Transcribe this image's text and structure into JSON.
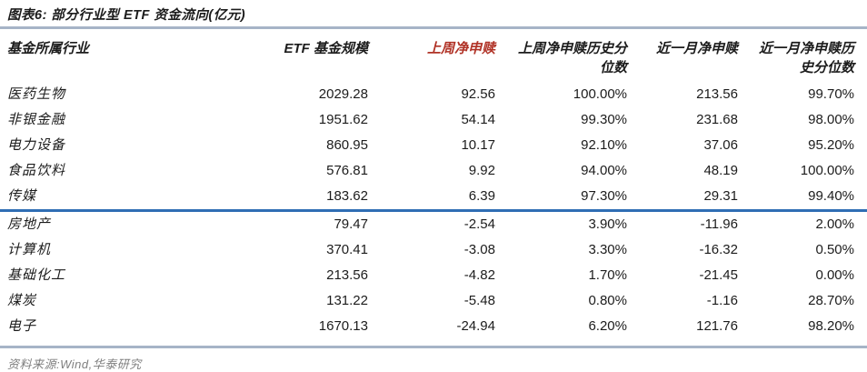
{
  "title": "图表6:  部分行业型 ETF 资金流向(亿元)",
  "colors": {
    "accent_red": "#b03226",
    "divider_blue": "#2f6eb4",
    "rule_blue_gray": "#a6b4c7",
    "footer_gray": "#7f7f7f"
  },
  "table": {
    "columns": [
      {
        "key": "industry",
        "label": "基金所属行业",
        "align": "left",
        "highlight": false
      },
      {
        "key": "scale",
        "label": "ETF 基金规模",
        "align": "right",
        "highlight": false
      },
      {
        "key": "week_net",
        "label": "上周净申赎",
        "align": "right",
        "highlight": true
      },
      {
        "key": "week_pct",
        "label": "上周净申赎历史分位数",
        "label_lines": [
          "上周净申赎历史分",
          "位数"
        ],
        "align": "right",
        "highlight": false
      },
      {
        "key": "month_net",
        "label": "近一月净申赎",
        "align": "right",
        "highlight": false
      },
      {
        "key": "month_pct",
        "label": "近一月净申赎历史分位数",
        "label_lines": [
          "近一月净申赎历",
          "史分位数"
        ],
        "align": "right",
        "highlight": false
      }
    ],
    "rows_top": [
      {
        "industry": "医药生物",
        "scale": "2029.28",
        "week_net": "92.56",
        "week_pct": "100.00%",
        "month_net": "213.56",
        "month_pct": "99.70%"
      },
      {
        "industry": "非银金融",
        "scale": "1951.62",
        "week_net": "54.14",
        "week_pct": "99.30%",
        "month_net": "231.68",
        "month_pct": "98.00%"
      },
      {
        "industry": "电力设备",
        "scale": "860.95",
        "week_net": "10.17",
        "week_pct": "92.10%",
        "month_net": "37.06",
        "month_pct": "95.20%"
      },
      {
        "industry": "食品饮料",
        "scale": "576.81",
        "week_net": "9.92",
        "week_pct": "94.00%",
        "month_net": "48.19",
        "month_pct": "100.00%"
      },
      {
        "industry": "传媒",
        "scale": "183.62",
        "week_net": "6.39",
        "week_pct": "97.30%",
        "month_net": "29.31",
        "month_pct": "99.40%"
      }
    ],
    "rows_bottom": [
      {
        "industry": "房地产",
        "scale": "79.47",
        "week_net": "-2.54",
        "week_pct": "3.90%",
        "month_net": "-11.96",
        "month_pct": "2.00%"
      },
      {
        "industry": "计算机",
        "scale": "370.41",
        "week_net": "-3.08",
        "week_pct": "3.30%",
        "month_net": "-16.32",
        "month_pct": "0.50%"
      },
      {
        "industry": "基础化工",
        "scale": "213.56",
        "week_net": "-4.82",
        "week_pct": "1.70%",
        "month_net": "-21.45",
        "month_pct": "0.00%"
      },
      {
        "industry": "煤炭",
        "scale": "131.22",
        "week_net": "-5.48",
        "week_pct": "0.80%",
        "month_net": "-1.16",
        "month_pct": "28.70%"
      },
      {
        "industry": "电子",
        "scale": "1670.13",
        "week_net": "-24.94",
        "week_pct": "6.20%",
        "month_net": "121.76",
        "month_pct": "98.20%"
      }
    ]
  },
  "footer": {
    "source_label": "资料来源:Wind,华泰研究"
  }
}
